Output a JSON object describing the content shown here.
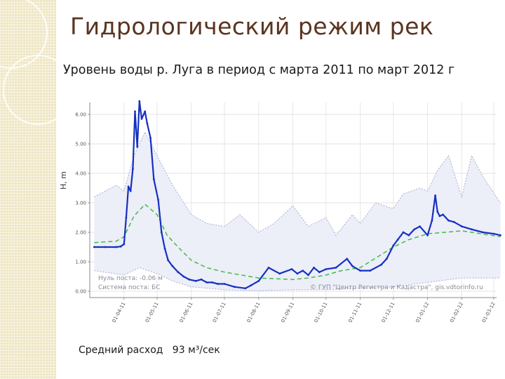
{
  "slide": {
    "title": "Гидрологический режим рек",
    "subtitle": "Уровень воды р. Луга в период с марта 2011 по март 2012 г",
    "footer": "Средний расход   93 м³/сек"
  },
  "chart_data": {
    "type": "line",
    "title": "",
    "xlabel": "",
    "ylabel": "H, m",
    "ylim": [
      0,
      6.5
    ],
    "yticks": [
      "0.00",
      "1.00",
      "2.00",
      "3.00",
      "4.00",
      "5.00",
      "6.00"
    ],
    "xticks": [
      "01-04-11",
      "01-05-11",
      "01-06-11",
      "01-07-11",
      "01-08-11",
      "01-09-11",
      "01-10-11",
      "01-11-11",
      "01-12-11",
      "01-01-12",
      "01-02-12",
      "01-03-12"
    ],
    "grid": true,
    "annotations": [
      "Нуль поста: -0.06 м",
      "Система поста: БС",
      "© ГУП \"Центр Регистра и Кадастра\", gis.vdtorinfo.ru"
    ],
    "series": [
      {
        "role": "observed level",
        "color": "#1530c0",
        "x": [
          "2011-03-05",
          "2011-03-15",
          "2011-03-25",
          "2011-03-29",
          "2011-04-01",
          "2011-04-03",
          "2011-04-05",
          "2011-04-07",
          "2011-04-09",
          "2011-04-11",
          "2011-04-13",
          "2011-04-15",
          "2011-04-17",
          "2011-04-20",
          "2011-04-22",
          "2011-04-25",
          "2011-04-28",
          "2011-05-02",
          "2011-05-05",
          "2011-05-08",
          "2011-05-11",
          "2011-05-15",
          "2011-05-20",
          "2011-05-25",
          "2011-05-30",
          "2011-06-05",
          "2011-06-10",
          "2011-06-15",
          "2011-06-20",
          "2011-06-25",
          "2011-07-01",
          "2011-07-10",
          "2011-07-20",
          "2011-07-25",
          "2011-08-01",
          "2011-08-10",
          "2011-08-20",
          "2011-08-31",
          "2011-09-05",
          "2011-09-10",
          "2011-09-15",
          "2011-09-20",
          "2011-09-25",
          "2011-10-01",
          "2011-10-10",
          "2011-10-20",
          "2011-10-25",
          "2011-11-01",
          "2011-11-10",
          "2011-11-20",
          "2011-11-25",
          "2011-12-01",
          "2011-12-05",
          "2011-12-10",
          "2011-12-15",
          "2011-12-20",
          "2011-12-25",
          "2012-01-01",
          "2012-01-05",
          "2012-01-08",
          "2012-01-10",
          "2012-01-12",
          "2012-01-15",
          "2012-01-20",
          "2012-01-25",
          "2012-02-01",
          "2012-02-10",
          "2012-02-20",
          "2012-03-01",
          "2012-03-07"
        ],
        "y": [
          1.5,
          1.5,
          1.5,
          1.52,
          1.6,
          2.5,
          3.55,
          3.4,
          4.15,
          6.1,
          4.9,
          6.45,
          5.85,
          6.1,
          5.7,
          5.2,
          3.8,
          3.1,
          2.0,
          1.45,
          1.05,
          0.85,
          0.65,
          0.5,
          0.4,
          0.35,
          0.4,
          0.3,
          0.3,
          0.25,
          0.25,
          0.15,
          0.1,
          0.2,
          0.35,
          0.8,
          0.6,
          0.75,
          0.6,
          0.7,
          0.55,
          0.8,
          0.65,
          0.75,
          0.8,
          1.1,
          0.85,
          0.7,
          0.7,
          0.9,
          1.1,
          1.55,
          1.75,
          2.0,
          1.9,
          2.1,
          2.2,
          1.9,
          2.4,
          3.25,
          2.7,
          2.55,
          2.6,
          2.4,
          2.35,
          2.2,
          2.1,
          2.0,
          1.95,
          1.9
        ]
      },
      {
        "role": "mean level",
        "color": "#44bb44",
        "x": [
          "2011-03-05",
          "2011-03-25",
          "2011-04-01",
          "2011-04-10",
          "2011-04-20",
          "2011-05-01",
          "2011-05-10",
          "2011-05-20",
          "2011-06-01",
          "2011-06-15",
          "2011-07-01",
          "2011-08-01",
          "2011-09-01",
          "2011-09-15",
          "2011-10-01",
          "2011-10-15",
          "2011-11-01",
          "2011-12-01",
          "2011-12-15",
          "2012-01-01",
          "2012-02-01",
          "2012-03-07"
        ],
        "y": [
          1.65,
          1.7,
          1.85,
          2.55,
          2.95,
          2.6,
          1.9,
          1.5,
          1.05,
          0.8,
          0.65,
          0.45,
          0.4,
          0.45,
          0.55,
          0.7,
          0.8,
          1.5,
          1.75,
          1.95,
          2.05,
          1.85
        ]
      },
      {
        "role": "maximum level envelope",
        "color": "#a8acd8",
        "x": [
          "2011-03-05",
          "2011-03-25",
          "2011-04-01",
          "2011-04-10",
          "2011-04-20",
          "2011-05-01",
          "2011-05-15",
          "2011-06-01",
          "2011-06-15",
          "2011-07-01",
          "2011-07-15",
          "2011-08-01",
          "2011-08-15",
          "2011-09-01",
          "2011-09-15",
          "2011-10-01",
          "2011-10-10",
          "2011-10-25",
          "2011-11-01",
          "2011-11-15",
          "2011-12-01",
          "2011-12-10",
          "2011-12-25",
          "2012-01-01",
          "2012-01-10",
          "2012-01-20",
          "2012-02-01",
          "2012-02-10",
          "2012-02-20",
          "2012-03-07"
        ],
        "y": [
          3.2,
          3.6,
          3.4,
          4.6,
          5.4,
          4.6,
          3.6,
          2.6,
          2.3,
          2.2,
          2.6,
          2.0,
          2.3,
          2.9,
          2.2,
          2.5,
          1.9,
          2.6,
          2.3,
          3.0,
          2.8,
          3.3,
          3.5,
          3.4,
          4.1,
          4.6,
          3.2,
          4.6,
          3.9,
          3.0
        ]
      },
      {
        "role": "minimum level envelope",
        "color": "#a8acd8",
        "x": [
          "2011-03-05",
          "2011-04-01",
          "2011-04-15",
          "2011-05-01",
          "2011-05-15",
          "2011-06-01",
          "2011-07-01",
          "2011-08-01",
          "2011-09-01",
          "2011-10-01",
          "2011-11-01",
          "2011-12-01",
          "2012-01-01",
          "2012-02-01",
          "2012-03-07"
        ],
        "y": [
          0.7,
          0.55,
          0.8,
          0.6,
          0.35,
          0.15,
          0.05,
          0.02,
          0.05,
          0.05,
          0.1,
          0.15,
          0.3,
          0.45,
          0.45
        ]
      }
    ]
  }
}
